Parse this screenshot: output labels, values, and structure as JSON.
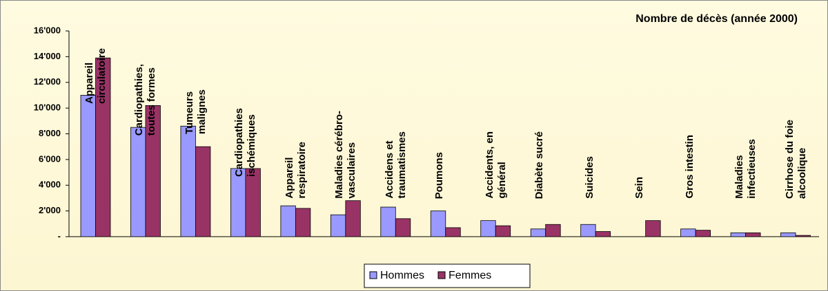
{
  "chart_data": {
    "type": "bar",
    "title": "Nombre de décès (année 2000)",
    "categories": [
      "Appareil\ncirculatoire",
      "Cardiopathies,\ntoutes formes",
      "Tumeurs\nmalignes",
      "Cardiopathies\nischémiques",
      "Appareil\nrespiratoire",
      "Maladies cérébro-\nvasculaires",
      "Accidens et\ntraumatismes",
      "Poumons",
      "Accidents, en\ngénéral",
      "Diabète sucré",
      "Suicides",
      "Sein",
      "Gros intestin",
      "Maladies\ninfectieuses",
      "Cirrhose du foie\nalcoolique"
    ],
    "series": [
      {
        "name": "Hommes",
        "color": "#9999ff",
        "values": [
          11000,
          8500,
          8600,
          5300,
          2400,
          1700,
          2300,
          2000,
          1250,
          600,
          950,
          0,
          600,
          300,
          300
        ]
      },
      {
        "name": "Femmes",
        "color": "#993366",
        "values": [
          13900,
          10200,
          7000,
          5300,
          2200,
          2800,
          1400,
          700,
          850,
          950,
          400,
          1250,
          500,
          300,
          100
        ]
      }
    ],
    "ylim": [
      0,
      16000
    ],
    "yticks": [
      {
        "value": 0,
        "label": "-"
      },
      {
        "value": 2000,
        "label": "2'000"
      },
      {
        "value": 4000,
        "label": "4'000"
      },
      {
        "value": 6000,
        "label": "6'000"
      },
      {
        "value": 8000,
        "label": "8'000"
      },
      {
        "value": 10000,
        "label": "10'000"
      },
      {
        "value": 12000,
        "label": "12'000"
      },
      {
        "value": 14000,
        "label": "14'000"
      },
      {
        "value": 16000,
        "label": "16'000"
      }
    ],
    "legend": "bottom"
  }
}
